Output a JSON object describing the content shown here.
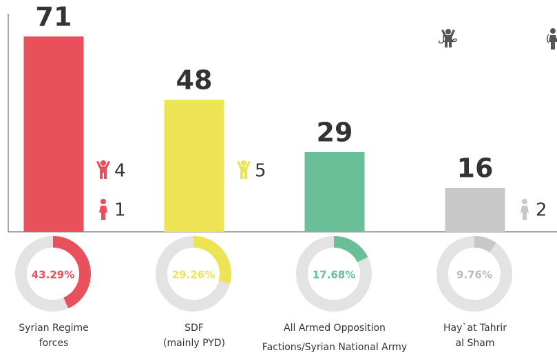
{
  "chart_data": {
    "type": "bar",
    "categories": [
      "Syrian Regime\nforces",
      "SDF\n(mainly PYD)",
      "All Armed Opposition\nFactions/Syrian National Army",
      "Hay`at Tahrir\nal Sham"
    ],
    "values": [
      71,
      48,
      29,
      16
    ],
    "colors": [
      "#e8505b",
      "#ede455",
      "#6bbf98",
      "#c8c8c8"
    ],
    "ylim": [
      0,
      80
    ],
    "children": [
      4,
      5,
      null,
      null
    ],
    "women": [
      1,
      null,
      null,
      2
    ],
    "donut": {
      "values": [
        43.29,
        29.26,
        17.68,
        9.76
      ],
      "value_labels": [
        "43.29%",
        "29.26%",
        "17.68%",
        "9.76%"
      ]
    },
    "legend": {
      "women": "سيدة (أنثى بالغة)",
      "children": "طفل"
    }
  }
}
